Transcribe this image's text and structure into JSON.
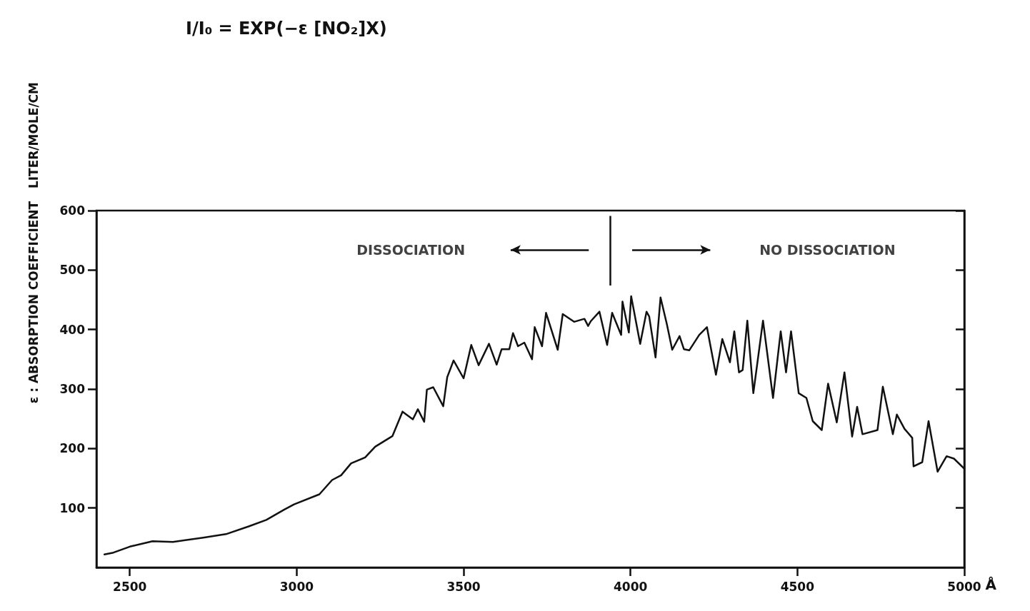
{
  "chart_data": {
    "type": "line",
    "ylabel": "ε : ABSORPTION COEFFICIENT   LITER/MOLE/CM",
    "xlabel": "Å",
    "x": [
      2424,
      2451,
      2500,
      2568,
      2629,
      2720,
      2788,
      2856,
      2909,
      2962,
      2992,
      3068,
      3106,
      3133,
      3163,
      3205,
      3235,
      3287,
      3317,
      3348,
      3363,
      3382,
      3390,
      3409,
      3439,
      3451,
      3470,
      3500,
      3523,
      3545,
      3576,
      3599,
      3614,
      3637,
      3648,
      3663,
      3682,
      3705,
      3713,
      3735,
      3747,
      3782,
      3797,
      3831,
      3862,
      3873,
      3881,
      3907,
      3930,
      3945,
      3972,
      3976,
      3995,
      4002,
      4029,
      4048,
      4056,
      4075,
      4090,
      4109,
      4125,
      4147,
      4160,
      4176,
      4206,
      4229,
      4237,
      4256,
      4275,
      4298,
      4311,
      4325,
      4336,
      4350,
      4368,
      4397,
      4427,
      4450,
      4466,
      4481,
      4504,
      4527,
      4546,
      4573,
      4592,
      4618,
      4641,
      4664,
      4679,
      4695,
      4740,
      4756,
      4786,
      4798,
      4821,
      4844,
      4848,
      4874,
      4893,
      4920,
      4947,
      4969,
      5000
    ],
    "series": [
      {
        "color": "#111111",
        "values": [
          22,
          25,
          35,
          44,
          43,
          50,
          56,
          69,
          80,
          97,
          106,
          123,
          147,
          155,
          175,
          185,
          203,
          221,
          262,
          249,
          266,
          245,
          299,
          303,
          271,
          320,
          348,
          318,
          374,
          340,
          376,
          341,
          367,
          367,
          394,
          372,
          378,
          350,
          404,
          372,
          428,
          366,
          426,
          413,
          418,
          406,
          414,
          430,
          374,
          428,
          391,
          447,
          395,
          456,
          376,
          430,
          422,
          353,
          454,
          409,
          366,
          389,
          367,
          365,
          391,
          404,
          380,
          324,
          384,
          345,
          397,
          328,
          332,
          415,
          293,
          415,
          285,
          397,
          328,
          397,
          293,
          285,
          246,
          231,
          309,
          244,
          328,
          220,
          270,
          224,
          231,
          304,
          224,
          257,
          233,
          218,
          170,
          177,
          246,
          161,
          187,
          183,
          166
        ]
      }
    ],
    "xlim": [
      2400,
      5000
    ],
    "xticks": [
      2500,
      3000,
      3500,
      4000,
      4500,
      5000
    ],
    "ylim": [
      0,
      600
    ],
    "yticks": [
      100,
      200,
      300,
      400,
      500,
      600
    ],
    "grid": false,
    "marker": "none",
    "line_style": "solid",
    "ref_lines": [
      {
        "axis": "x",
        "value": 3940
      }
    ],
    "annotations": [
      "I/I₀ = EXP(−ε [NO₂]X)",
      "DISSOCIATION",
      "NO DISSOCIATION"
    ]
  }
}
